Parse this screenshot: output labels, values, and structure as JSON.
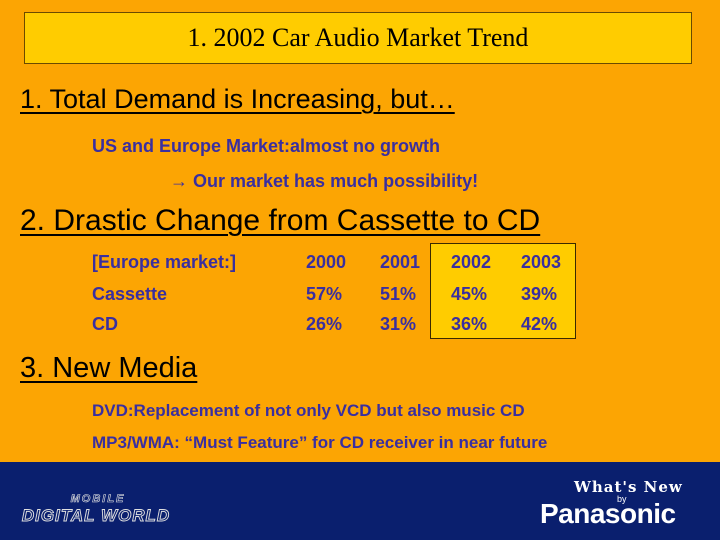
{
  "title": "1. 2002 Car Audio Market Trend",
  "section1": {
    "heading": "1. Total Demand is Increasing, but…",
    "line1": "US and Europe Market:almost no growth",
    "line2": "Our market has much possibility!"
  },
  "section2": {
    "heading": "2. Drastic Change from Cassette to CD",
    "table": {
      "header": [
        "[Europe market:]",
        "2000",
        "2001",
        "2002",
        "2003"
      ],
      "rows": [
        [
          "Cassette",
          "57%",
          "51%",
          "45%",
          "39%"
        ],
        [
          "CD",
          "26%",
          "31%",
          "36%",
          "42%"
        ]
      ]
    }
  },
  "section3": {
    "heading": "3. New Media",
    "line1": "DVD:Replacement of not only VCD but also music CD",
    "line2": "MP3/WMA: “Must Feature” for CD receiver in near future"
  },
  "footer": {
    "logo_top": "MOBILE",
    "logo_bottom": "DIGITAL WORLD",
    "whats_new": "What's New",
    "by": "by",
    "brand": "Panasonic"
  },
  "colors": {
    "background": "#fca503",
    "title_box": "#ffcc00",
    "text_blue": "#3a2fa0",
    "footer": "#0a1f6e"
  }
}
